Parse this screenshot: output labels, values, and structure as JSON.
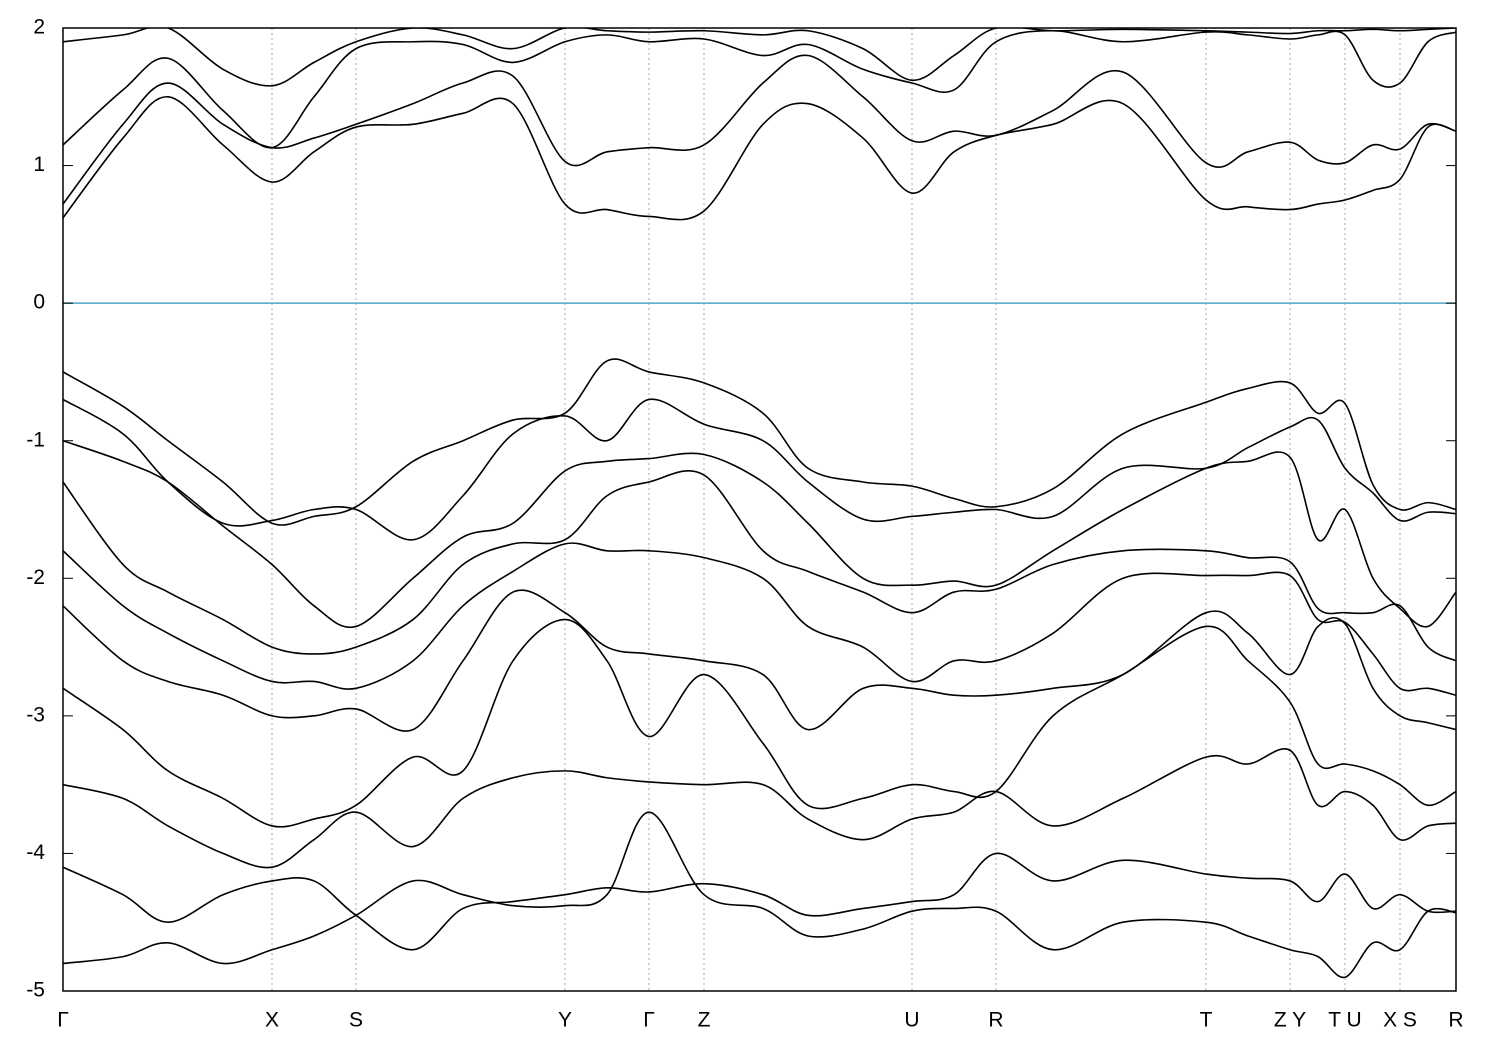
{
  "chart_data": {
    "type": "line",
    "x": [
      0,
      0.6,
      1.05,
      1.6,
      2.09,
      2.51,
      2.93,
      3.5,
      4.0,
      4.5,
      5.02,
      5.44,
      5.86,
      6.41,
      7.0,
      7.45,
      8.0,
      8.49,
      8.91,
      9.33,
      9.9,
      10.6,
      11.43,
      11.85,
      12.27,
      12.55,
      12.82,
      13.1,
      13.37,
      13.65,
      13.93
    ],
    "xlim": [
      0,
      13.93
    ],
    "ylim": [
      -5,
      2
    ],
    "yticks": [
      -5,
      -4,
      -3,
      -2,
      -1,
      0,
      1,
      2
    ],
    "xticks": [
      {
        "value": 0,
        "label": "Γ"
      },
      {
        "value": 2.09,
        "label": "X"
      },
      {
        "value": 2.93,
        "label": "S"
      },
      {
        "value": 5.02,
        "label": "Y"
      },
      {
        "value": 5.86,
        "label": "Γ"
      },
      {
        "value": 6.41,
        "label": "Z"
      },
      {
        "value": 8.49,
        "label": "U"
      },
      {
        "value": 9.33,
        "label": "R"
      },
      {
        "value": 11.43,
        "label": "T"
      },
      {
        "value": 12.27,
        "label": "Z Y"
      },
      {
        "value": 12.82,
        "label": "T U"
      },
      {
        "value": 13.37,
        "label": "X S"
      },
      {
        "value": 13.93,
        "label": "R"
      }
    ],
    "grid": "x",
    "color": "#000000",
    "reference_line": 0,
    "reference_color": "#4aa8c0",
    "series": [
      {
        "values": [
          0.62,
          1.2,
          1.5,
          1.15,
          0.88,
          1.1,
          1.28,
          1.3,
          1.38,
          1.45,
          0.72,
          0.68,
          0.63,
          0.67,
          1.3,
          1.45,
          1.2,
          0.8,
          1.1,
          1.22,
          1.3,
          1.45,
          0.75,
          0.7,
          0.68,
          0.72,
          0.75,
          0.82,
          0.9,
          1.28,
          1.25
        ]
      },
      {
        "values": [
          0.72,
          1.3,
          1.6,
          1.3,
          1.13,
          1.2,
          1.3,
          1.45,
          1.6,
          1.65,
          1.03,
          1.1,
          1.13,
          1.15,
          1.6,
          1.8,
          1.5,
          1.18,
          1.25,
          1.22,
          1.4,
          1.68,
          1.02,
          1.1,
          1.17,
          1.04,
          1.02,
          1.15,
          1.12,
          1.3,
          1.25
        ]
      },
      {
        "values": [
          1.15,
          1.55,
          1.78,
          1.4,
          1.13,
          1.5,
          1.85,
          1.9,
          1.88,
          1.75,
          1.9,
          1.95,
          1.9,
          1.92,
          1.8,
          1.88,
          1.7,
          1.6,
          1.55,
          1.9,
          1.98,
          1.9,
          1.97,
          1.95,
          1.92,
          1.95,
          1.95,
          1.62,
          1.6,
          1.9,
          1.97
        ]
      },
      {
        "values": [
          1.9,
          1.95,
          2,
          1.7,
          1.58,
          1.75,
          1.9,
          2,
          1.95,
          1.85,
          2,
          1.98,
          1.97,
          1.98,
          1.95,
          1.98,
          1.85,
          1.62,
          1.8,
          2,
          1.98,
          1.99,
          1.98,
          1.97,
          1.96,
          1.98,
          1.98,
          1.99,
          1.98,
          1.99,
          2
        ]
      },
      {
        "values": [
          -0.5,
          -0.75,
          -1.0,
          -1.3,
          -1.6,
          -1.55,
          -1.48,
          -1.15,
          -1.0,
          -0.85,
          -0.8,
          -0.42,
          -0.5,
          -0.58,
          -0.8,
          -1.2,
          -1.3,
          -1.33,
          -1.42,
          -1.48,
          -1.35,
          -0.95,
          -0.72,
          -0.62,
          -0.58,
          -0.8,
          -0.73,
          -1.32,
          -1.5,
          -1.45,
          -1.5
        ]
      },
      {
        "values": [
          -0.7,
          -0.95,
          -1.3,
          -1.6,
          -1.58,
          -1.5,
          -1.5,
          -1.72,
          -1.4,
          -0.95,
          -0.82,
          -1.0,
          -0.7,
          -0.88,
          -1.0,
          -1.3,
          -1.57,
          -1.55,
          -1.52,
          -1.5,
          -1.55,
          -1.2,
          -1.2,
          -1.05,
          -0.9,
          -0.85,
          -1.2,
          -1.38,
          -1.58,
          -1.52,
          -1.53
        ]
      },
      {
        "values": [
          -1.0,
          -1.15,
          -1.3,
          -1.62,
          -1.9,
          -2.2,
          -2.35,
          -2.0,
          -1.7,
          -1.6,
          -1.22,
          -1.15,
          -1.13,
          -1.1,
          -1.3,
          -1.6,
          -2.0,
          -2.05,
          -2.02,
          -2.05,
          -1.8,
          -1.5,
          -1.2,
          -1.15,
          -1.12,
          -1.72,
          -1.5,
          -2.0,
          -2.22,
          -2.35,
          -2.1
        ]
      },
      {
        "values": [
          -1.3,
          -1.9,
          -2.1,
          -2.3,
          -2.5,
          -2.55,
          -2.5,
          -2.3,
          -1.9,
          -1.75,
          -1.72,
          -1.4,
          -1.3,
          -1.25,
          -1.8,
          -1.95,
          -2.1,
          -2.25,
          -2.1,
          -2.08,
          -1.9,
          -1.8,
          -1.8,
          -1.85,
          -1.88,
          -2.22,
          -2.25,
          -2.25,
          -2.2,
          -2.5,
          -2.6
        ]
      },
      {
        "values": [
          -1.8,
          -2.2,
          -2.4,
          -2.6,
          -2.75,
          -2.75,
          -2.8,
          -2.6,
          -2.2,
          -1.95,
          -1.75,
          -1.8,
          -1.8,
          -1.85,
          -2.0,
          -2.35,
          -2.5,
          -2.75,
          -2.6,
          -2.6,
          -2.4,
          -2.0,
          -1.98,
          -1.98,
          -1.98,
          -2.3,
          -2.32,
          -2.55,
          -2.8,
          -2.8,
          -2.85
        ]
      },
      {
        "values": [
          -2.2,
          -2.6,
          -2.75,
          -2.85,
          -3.0,
          -3.0,
          -2.95,
          -3.1,
          -2.6,
          -2.1,
          -2.25,
          -2.5,
          -2.55,
          -2.6,
          -2.7,
          -3.1,
          -2.8,
          -2.8,
          -2.85,
          -2.85,
          -2.8,
          -2.7,
          -2.25,
          -2.4,
          -2.7,
          -2.35,
          -2.33,
          -2.8,
          -3.0,
          -3.05,
          -3.1
        ]
      },
      {
        "values": [
          -2.8,
          -3.1,
          -3.4,
          -3.6,
          -3.8,
          -3.75,
          -3.65,
          -3.3,
          -3.4,
          -2.6,
          -2.3,
          -2.6,
          -3.15,
          -2.7,
          -3.2,
          -3.65,
          -3.6,
          -3.5,
          -3.55,
          -3.55,
          -3.0,
          -2.7,
          -2.35,
          -2.6,
          -2.9,
          -3.35,
          -3.35,
          -3.4,
          -3.5,
          -3.65,
          -3.55
        ]
      },
      {
        "values": [
          -3.5,
          -3.6,
          -3.8,
          -4.0,
          -4.1,
          -3.9,
          -3.7,
          -3.95,
          -3.6,
          -3.45,
          -3.4,
          -3.45,
          -3.48,
          -3.5,
          -3.5,
          -3.75,
          -3.9,
          -3.75,
          -3.7,
          -3.55,
          -3.8,
          -3.6,
          -3.3,
          -3.35,
          -3.25,
          -3.65,
          -3.55,
          -3.65,
          -3.9,
          -3.8,
          -3.78
        ]
      },
      {
        "values": [
          -4.1,
          -4.3,
          -4.5,
          -4.3,
          -4.2,
          -4.2,
          -4.45,
          -4.7,
          -4.4,
          -4.35,
          -4.3,
          -4.25,
          -4.28,
          -4.22,
          -4.3,
          -4.45,
          -4.4,
          -4.35,
          -4.3,
          -4.0,
          -4.2,
          -4.05,
          -4.15,
          -4.18,
          -4.2,
          -4.35,
          -4.15,
          -4.4,
          -4.3,
          -4.42,
          -4.42
        ]
      },
      {
        "values": [
          -4.8,
          -4.75,
          -4.65,
          -4.8,
          -4.7,
          -4.6,
          -4.45,
          -4.2,
          -4.3,
          -4.38,
          -4.38,
          -4.3,
          -3.7,
          -4.3,
          -4.4,
          -4.6,
          -4.55,
          -4.42,
          -4.4,
          -4.42,
          -4.7,
          -4.5,
          -4.5,
          -4.6,
          -4.7,
          -4.75,
          -4.9,
          -4.65,
          -4.7,
          -4.42,
          -4.43
        ]
      }
    ]
  }
}
